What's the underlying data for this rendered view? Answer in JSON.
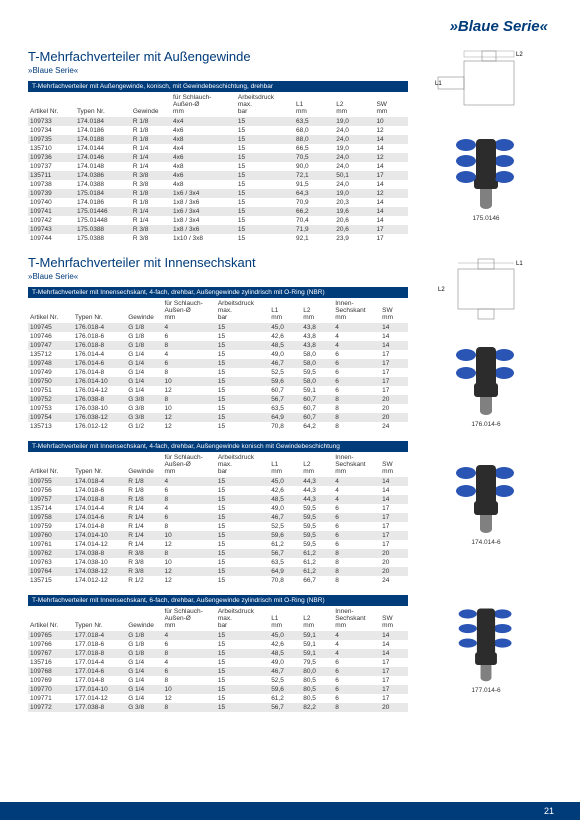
{
  "brand": "»Blaue Serie«",
  "pageNumber": "21",
  "section1": {
    "title": "T-Mehrfachverteiler mit Außengewinde",
    "sub": "»Blaue Serie«",
    "hdr": "T-Mehrfachverteiler mit Außengewinde, konisch, mit Gewindebeschichtung, drehbar",
    "diagramLabels": {
      "L1": "L1",
      "L2": "L2"
    },
    "cols": [
      "Artikel Nr.",
      "Typen Nr.",
      "Gewinde",
      "für Schlauch-\nAußen-Ø\nmm",
      "Arbeitsdruck\nmax.\nbar",
      "L1\nmm",
      "L2\nmm",
      "SW\nmm"
    ],
    "rows": [
      [
        "109733",
        "174.0184",
        "R 1/8",
        "4x4",
        "15",
        "63,5",
        "19,0",
        "10"
      ],
      [
        "109734",
        "174.0186",
        "R 1/8",
        "4x6",
        "15",
        "68,0",
        "24,0",
        "12"
      ],
      [
        "109735",
        "174.0188",
        "R 1/8",
        "4x8",
        "15",
        "88,0",
        "24,0",
        "14"
      ],
      [
        "135710",
        "174.0144",
        "R 1/4",
        "4x4",
        "15",
        "66,5",
        "19,0",
        "14"
      ],
      [
        "109736",
        "174.0146",
        "R 1/4",
        "4x6",
        "15",
        "70,5",
        "24,0",
        "12"
      ],
      [
        "109737",
        "174.0148",
        "R 1/4",
        "4x8",
        "15",
        "90,0",
        "24,0",
        "14"
      ],
      [
        "135711",
        "174.0386",
        "R 3/8",
        "4x6",
        "15",
        "72,1",
        "50,1",
        "17"
      ],
      [
        "109738",
        "174.0388",
        "R 3/8",
        "4x8",
        "15",
        "91,5",
        "24,0",
        "14"
      ],
      [
        "109739",
        "175.0184",
        "R 1/8",
        "1x6 / 3x4",
        "15",
        "64,3",
        "19,0",
        "12"
      ],
      [
        "109740",
        "174.0186",
        "R 1/8",
        "1x8 / 3x6",
        "15",
        "70,9",
        "20,3",
        "14"
      ],
      [
        "109741",
        "175.01446",
        "R 1/4",
        "1x6 / 3x4",
        "15",
        "66,2",
        "19,6",
        "14"
      ],
      [
        "109742",
        "175.01448",
        "R 1/4",
        "1x8 / 3x4",
        "15",
        "70,4",
        "20,6",
        "14"
      ],
      [
        "109743",
        "175.0388",
        "R 3/8",
        "1x8 / 3x6",
        "15",
        "71,9",
        "20,6",
        "17"
      ],
      [
        "109744",
        "175.0388",
        "R 3/8",
        "1x10 / 3x8",
        "15",
        "92,1",
        "23,9",
        "17"
      ]
    ],
    "imgCaption": "175.0146"
  },
  "section2": {
    "title": "T-Mehrfachverteiler mit Innensechskant",
    "sub": "»Blaue Serie«",
    "diagramLabels": {
      "L1": "L1",
      "L2": "L2"
    },
    "hdr1": "T-Mehrfachverteiler mit Innensechskant, 4-fach, drehbar, Außengewinde zylindrisch mit O-Ring (NBR)",
    "cols": [
      "Artikel Nr.",
      "Typen Nr.",
      "Gewinde",
      "für Schlauch-\nAußen-Ø\nmm",
      "Arbeitsdruck\nmax.\nbar",
      "L1\nmm",
      "L2\nmm",
      "Innen-\nSechskant\nmm",
      "SW\nmm"
    ],
    "rows1": [
      [
        "109745",
        "176.018-4",
        "G 1/8",
        "4",
        "15",
        "45,0",
        "43,8",
        "4",
        "14"
      ],
      [
        "109746",
        "176.018-6",
        "G 1/8",
        "6",
        "15",
        "42,6",
        "43,8",
        "4",
        "14"
      ],
      [
        "109747",
        "176.018-8",
        "G 1/8",
        "8",
        "15",
        "48,5",
        "43,8",
        "4",
        "14"
      ],
      [
        "135712",
        "176.014-4",
        "G 1/4",
        "4",
        "15",
        "49,0",
        "58,0",
        "6",
        "17"
      ],
      [
        "109748",
        "176.014-6",
        "G 1/4",
        "6",
        "15",
        "46,7",
        "58,0",
        "6",
        "17"
      ],
      [
        "109749",
        "176.014-8",
        "G 1/4",
        "8",
        "15",
        "52,5",
        "59,5",
        "6",
        "17"
      ],
      [
        "109750",
        "176.014-10",
        "G 1/4",
        "10",
        "15",
        "59,6",
        "58,0",
        "6",
        "17"
      ],
      [
        "109751",
        "176.014-12",
        "G 1/4",
        "12",
        "15",
        "60,7",
        "59,1",
        "6",
        "17"
      ],
      [
        "109752",
        "176.038-8",
        "G 3/8",
        "8",
        "15",
        "56,7",
        "60,7",
        "8",
        "20"
      ],
      [
        "109753",
        "176.038-10",
        "G 3/8",
        "10",
        "15",
        "63,5",
        "60,7",
        "8",
        "20"
      ],
      [
        "109754",
        "176.038-12",
        "G 3/8",
        "12",
        "15",
        "64,9",
        "60,7",
        "8",
        "20"
      ],
      [
        "135713",
        "176.012-12",
        "G 1/2",
        "12",
        "15",
        "70,8",
        "64,2",
        "8",
        "24"
      ]
    ],
    "imgCaption1": "176.014-6",
    "hdr2": "T-Mehrfachverteiler mit Innensechskant, 4-fach, drehbar, Außengewinde konisch mit Gewindebeschichtung",
    "rows2": [
      [
        "109755",
        "174.018-4",
        "R 1/8",
        "4",
        "15",
        "45,0",
        "44,3",
        "4",
        "14"
      ],
      [
        "109756",
        "174.018-6",
        "R 1/8",
        "6",
        "15",
        "42,6",
        "44,3",
        "4",
        "14"
      ],
      [
        "109757",
        "174.018-8",
        "R 1/8",
        "8",
        "15",
        "48,5",
        "44,3",
        "4",
        "14"
      ],
      [
        "135714",
        "174.014-4",
        "R 1/4",
        "4",
        "15",
        "49,0",
        "59,5",
        "6",
        "17"
      ],
      [
        "109758",
        "174.014-6",
        "R 1/4",
        "6",
        "15",
        "46,7",
        "59,5",
        "6",
        "17"
      ],
      [
        "109759",
        "174.014-8",
        "R 1/4",
        "8",
        "15",
        "52,5",
        "59,5",
        "6",
        "17"
      ],
      [
        "109760",
        "174.014-10",
        "R 1/4",
        "10",
        "15",
        "59,6",
        "59,5",
        "6",
        "17"
      ],
      [
        "109761",
        "174.014-12",
        "R 1/4",
        "12",
        "15",
        "61,2",
        "59,5",
        "6",
        "17"
      ],
      [
        "109762",
        "174.038-8",
        "R 3/8",
        "8",
        "15",
        "56,7",
        "61,2",
        "8",
        "20"
      ],
      [
        "109763",
        "174.038-10",
        "R 3/8",
        "10",
        "15",
        "63,5",
        "61,2",
        "8",
        "20"
      ],
      [
        "109764",
        "174.038-12",
        "R 3/8",
        "12",
        "15",
        "64,9",
        "61,2",
        "8",
        "20"
      ],
      [
        "135715",
        "174.012-12",
        "R 1/2",
        "12",
        "15",
        "70,8",
        "66,7",
        "8",
        "24"
      ]
    ],
    "imgCaption2": "174.014-6",
    "hdr3": "T-Mehrfachverteiler mit Innensechskant, 6-fach, drehbar, Außengewinde zylindrisch mit O-Ring (NBR)",
    "rows3": [
      [
        "109765",
        "177.018-4",
        "G 1/8",
        "4",
        "15",
        "45,0",
        "59,1",
        "4",
        "14"
      ],
      [
        "109766",
        "177.018-6",
        "G 1/8",
        "6",
        "15",
        "42,6",
        "59,1",
        "4",
        "14"
      ],
      [
        "109767",
        "177.018-8",
        "G 1/8",
        "8",
        "15",
        "48,5",
        "59,1",
        "4",
        "14"
      ],
      [
        "135716",
        "177.014-4",
        "G 1/4",
        "4",
        "15",
        "49,0",
        "79,5",
        "6",
        "17"
      ],
      [
        "109768",
        "177.014-6",
        "G 1/4",
        "6",
        "15",
        "46,7",
        "80,0",
        "6",
        "17"
      ],
      [
        "109769",
        "177.014-8",
        "G 1/4",
        "8",
        "15",
        "52,5",
        "80,5",
        "6",
        "17"
      ],
      [
        "109770",
        "177.014-10",
        "G 1/4",
        "10",
        "15",
        "59,6",
        "80,5",
        "6",
        "17"
      ],
      [
        "109771",
        "177.014-12",
        "G 1/4",
        "12",
        "15",
        "61,2",
        "80,5",
        "6",
        "17"
      ],
      [
        "109772",
        "177.038-8",
        "G 3/8",
        "8",
        "15",
        "56,7",
        "82,2",
        "8",
        "20"
      ]
    ],
    "imgCaption3": "177.014-6"
  },
  "colors": {
    "brand": "#003b7a",
    "rowAlt": "#e8e8e8",
    "fittingBlue": "#2a55b5",
    "fittingDark": "#2c2c2c"
  }
}
